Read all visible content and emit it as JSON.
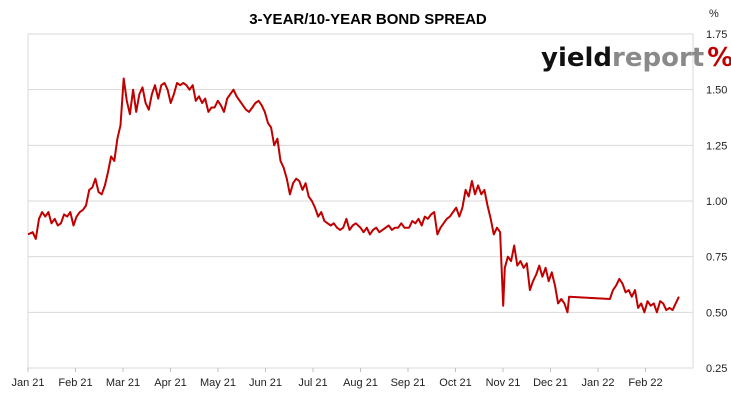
{
  "chart_data": {
    "type": "line",
    "title": "3-YEAR/10-YEAR BOND SPREAD",
    "y_unit": "%",
    "ylim": [
      0.25,
      1.75
    ],
    "y_ticks": [
      "0.25",
      "0.50",
      "0.75",
      "1.00",
      "1.25",
      "1.50",
      "1.75"
    ],
    "y_tick_values": [
      0.25,
      0.5,
      0.75,
      1.0,
      1.25,
      1.5,
      1.75
    ],
    "x_ticks": [
      "Jan 21",
      "Feb 21",
      "Mar 21",
      "Apr 21",
      "May 21",
      "Jun 21",
      "Jul 21",
      "Aug 21",
      "Sep 21",
      "Oct 21",
      "Nov 21",
      "Dec 21",
      "Jan 22",
      "Feb 22"
    ],
    "grid": true,
    "series_color": "#c00000",
    "series": [
      {
        "values": [
          [
            "2021-01-01",
            0.85
          ],
          [
            "2021-01-04",
            0.86
          ],
          [
            "2021-01-06",
            0.83
          ],
          [
            "2021-01-08",
            0.92
          ],
          [
            "2021-01-10",
            0.95
          ],
          [
            "2021-01-12",
            0.93
          ],
          [
            "2021-01-14",
            0.95
          ],
          [
            "2021-01-16",
            0.9
          ],
          [
            "2021-01-18",
            0.92
          ],
          [
            "2021-01-20",
            0.89
          ],
          [
            "2021-01-22",
            0.9
          ],
          [
            "2021-01-24",
            0.94
          ],
          [
            "2021-01-26",
            0.93
          ],
          [
            "2021-01-28",
            0.95
          ],
          [
            "2021-01-30",
            0.89
          ],
          [
            "2021-02-01",
            0.93
          ],
          [
            "2021-02-03",
            0.95
          ],
          [
            "2021-02-05",
            0.96
          ],
          [
            "2021-02-07",
            0.98
          ],
          [
            "2021-02-09",
            1.05
          ],
          [
            "2021-02-11",
            1.06
          ],
          [
            "2021-02-13",
            1.1
          ],
          [
            "2021-02-15",
            1.04
          ],
          [
            "2021-02-17",
            1.03
          ],
          [
            "2021-02-19",
            1.07
          ],
          [
            "2021-02-21",
            1.13
          ],
          [
            "2021-02-23",
            1.2
          ],
          [
            "2021-02-25",
            1.18
          ],
          [
            "2021-02-27",
            1.28
          ],
          [
            "2021-03-01",
            1.34
          ],
          [
            "2021-03-03",
            1.55
          ],
          [
            "2021-03-05",
            1.45
          ],
          [
            "2021-03-07",
            1.39
          ],
          [
            "2021-03-09",
            1.5
          ],
          [
            "2021-03-11",
            1.4
          ],
          [
            "2021-03-13",
            1.48
          ],
          [
            "2021-03-15",
            1.51
          ],
          [
            "2021-03-17",
            1.44
          ],
          [
            "2021-03-19",
            1.41
          ],
          [
            "2021-03-21",
            1.48
          ],
          [
            "2021-03-23",
            1.52
          ],
          [
            "2021-03-25",
            1.46
          ],
          [
            "2021-03-27",
            1.52
          ],
          [
            "2021-03-29",
            1.53
          ],
          [
            "2021-03-31",
            1.5
          ],
          [
            "2021-04-02",
            1.44
          ],
          [
            "2021-04-04",
            1.48
          ],
          [
            "2021-04-06",
            1.53
          ],
          [
            "2021-04-08",
            1.52
          ],
          [
            "2021-04-10",
            1.53
          ],
          [
            "2021-04-12",
            1.52
          ],
          [
            "2021-04-14",
            1.5
          ],
          [
            "2021-04-16",
            1.52
          ],
          [
            "2021-04-18",
            1.45
          ],
          [
            "2021-04-20",
            1.47
          ],
          [
            "2021-04-22",
            1.44
          ],
          [
            "2021-04-24",
            1.46
          ],
          [
            "2021-04-26",
            1.4
          ],
          [
            "2021-04-28",
            1.42
          ],
          [
            "2021-04-30",
            1.42
          ],
          [
            "2021-05-02",
            1.45
          ],
          [
            "2021-05-04",
            1.43
          ],
          [
            "2021-05-06",
            1.4
          ],
          [
            "2021-05-08",
            1.46
          ],
          [
            "2021-05-10",
            1.48
          ],
          [
            "2021-05-12",
            1.5
          ],
          [
            "2021-05-14",
            1.47
          ],
          [
            "2021-05-16",
            1.45
          ],
          [
            "2021-05-18",
            1.43
          ],
          [
            "2021-05-20",
            1.41
          ],
          [
            "2021-05-22",
            1.4
          ],
          [
            "2021-05-24",
            1.42
          ],
          [
            "2021-05-26",
            1.44
          ],
          [
            "2021-05-28",
            1.45
          ],
          [
            "2021-05-30",
            1.43
          ],
          [
            "2021-06-01",
            1.4
          ],
          [
            "2021-06-03",
            1.35
          ],
          [
            "2021-06-05",
            1.33
          ],
          [
            "2021-06-07",
            1.25
          ],
          [
            "2021-06-09",
            1.28
          ],
          [
            "2021-06-11",
            1.18
          ],
          [
            "2021-06-13",
            1.15
          ],
          [
            "2021-06-15",
            1.1
          ],
          [
            "2021-06-17",
            1.03
          ],
          [
            "2021-06-19",
            1.08
          ],
          [
            "2021-06-21",
            1.1
          ],
          [
            "2021-06-23",
            1.09
          ],
          [
            "2021-06-25",
            1.05
          ],
          [
            "2021-06-27",
            1.08
          ],
          [
            "2021-06-29",
            1.02
          ],
          [
            "2021-07-01",
            1.0
          ],
          [
            "2021-07-03",
            0.97
          ],
          [
            "2021-07-05",
            0.93
          ],
          [
            "2021-07-07",
            0.95
          ],
          [
            "2021-07-09",
            0.91
          ],
          [
            "2021-07-11",
            0.9
          ],
          [
            "2021-07-13",
            0.89
          ],
          [
            "2021-07-15",
            0.9
          ],
          [
            "2021-07-17",
            0.88
          ],
          [
            "2021-07-19",
            0.87
          ],
          [
            "2021-07-21",
            0.88
          ],
          [
            "2021-07-23",
            0.92
          ],
          [
            "2021-07-25",
            0.87
          ],
          [
            "2021-07-27",
            0.89
          ],
          [
            "2021-07-29",
            0.9
          ],
          [
            "2021-08-01",
            0.88
          ],
          [
            "2021-08-03",
            0.86
          ],
          [
            "2021-08-05",
            0.88
          ],
          [
            "2021-08-07",
            0.85
          ],
          [
            "2021-08-09",
            0.87
          ],
          [
            "2021-08-11",
            0.88
          ],
          [
            "2021-08-13",
            0.86
          ],
          [
            "2021-08-15",
            0.87
          ],
          [
            "2021-08-17",
            0.88
          ],
          [
            "2021-08-19",
            0.89
          ],
          [
            "2021-08-21",
            0.87
          ],
          [
            "2021-08-23",
            0.88
          ],
          [
            "2021-08-25",
            0.88
          ],
          [
            "2021-08-27",
            0.9
          ],
          [
            "2021-08-29",
            0.88
          ],
          [
            "2021-09-01",
            0.88
          ],
          [
            "2021-09-03",
            0.91
          ],
          [
            "2021-09-05",
            0.9
          ],
          [
            "2021-09-07",
            0.92
          ],
          [
            "2021-09-09",
            0.89
          ],
          [
            "2021-09-11",
            0.93
          ],
          [
            "2021-09-13",
            0.92
          ],
          [
            "2021-09-15",
            0.94
          ],
          [
            "2021-09-17",
            0.95
          ],
          [
            "2021-09-19",
            0.85
          ],
          [
            "2021-09-21",
            0.88
          ],
          [
            "2021-09-23",
            0.9
          ],
          [
            "2021-09-25",
            0.92
          ],
          [
            "2021-09-27",
            0.93
          ],
          [
            "2021-09-29",
            0.95
          ],
          [
            "2021-10-01",
            0.97
          ],
          [
            "2021-10-03",
            0.93
          ],
          [
            "2021-10-05",
            0.97
          ],
          [
            "2021-10-07",
            1.05
          ],
          [
            "2021-10-09",
            1.02
          ],
          [
            "2021-10-11",
            1.09
          ],
          [
            "2021-10-13",
            1.03
          ],
          [
            "2021-10-15",
            1.07
          ],
          [
            "2021-10-17",
            1.03
          ],
          [
            "2021-10-19",
            1.05
          ],
          [
            "2021-10-21",
            0.98
          ],
          [
            "2021-10-23",
            0.92
          ],
          [
            "2021-10-25",
            0.85
          ],
          [
            "2021-10-27",
            0.88
          ],
          [
            "2021-10-29",
            0.86
          ],
          [
            "2021-10-31",
            0.53
          ],
          [
            "2021-11-01",
            0.7
          ],
          [
            "2021-11-03",
            0.75
          ],
          [
            "2021-11-05",
            0.73
          ],
          [
            "2021-11-07",
            0.8
          ],
          [
            "2021-11-09",
            0.71
          ],
          [
            "2021-11-11",
            0.73
          ],
          [
            "2021-11-13",
            0.7
          ],
          [
            "2021-11-15",
            0.72
          ],
          [
            "2021-11-17",
            0.6
          ],
          [
            "2021-11-19",
            0.64
          ],
          [
            "2021-11-21",
            0.67
          ],
          [
            "2021-11-23",
            0.71
          ],
          [
            "2021-11-25",
            0.66
          ],
          [
            "2021-11-27",
            0.7
          ],
          [
            "2021-11-29",
            0.64
          ],
          [
            "2021-12-01",
            0.68
          ],
          [
            "2021-12-03",
            0.62
          ],
          [
            "2021-12-05",
            0.54
          ],
          [
            "2021-12-07",
            0.56
          ],
          [
            "2021-12-09",
            0.54
          ],
          [
            "2021-12-11",
            0.5
          ],
          [
            "2021-12-12",
            0.57
          ],
          [
            "2022-01-07",
            0.56
          ],
          [
            "2022-01-09",
            0.6
          ],
          [
            "2022-01-11",
            0.62
          ],
          [
            "2022-01-13",
            0.65
          ],
          [
            "2022-01-15",
            0.63
          ],
          [
            "2022-01-17",
            0.59
          ],
          [
            "2022-01-19",
            0.6
          ],
          [
            "2022-01-21",
            0.57
          ],
          [
            "2022-01-23",
            0.6
          ],
          [
            "2022-01-25",
            0.52
          ],
          [
            "2022-01-27",
            0.54
          ],
          [
            "2022-01-29",
            0.5
          ],
          [
            "2022-01-31",
            0.55
          ],
          [
            "2022-02-02",
            0.53
          ],
          [
            "2022-02-04",
            0.54
          ],
          [
            "2022-02-06",
            0.5
          ],
          [
            "2022-02-08",
            0.55
          ],
          [
            "2022-02-10",
            0.54
          ],
          [
            "2022-02-12",
            0.51
          ],
          [
            "2022-02-14",
            0.52
          ],
          [
            "2022-02-16",
            0.51
          ],
          [
            "2022-02-18",
            0.54
          ],
          [
            "2022-02-20",
            0.57
          ]
        ]
      }
    ]
  },
  "logo": {
    "part1": "yield",
    "part2": "report",
    "pct": "%"
  }
}
